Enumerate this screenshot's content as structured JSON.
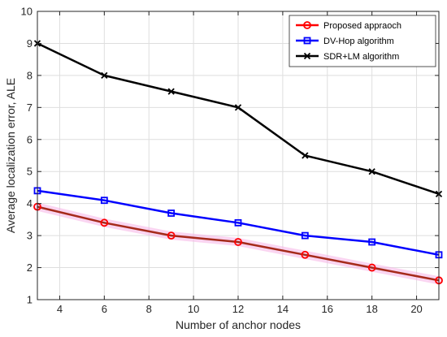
{
  "chart_data": {
    "type": "line",
    "title": "",
    "xlabel": "Number of anchor nodes",
    "ylabel": "Average localization error, ALE",
    "xlim": [
      3,
      21
    ],
    "ylim": [
      1,
      10
    ],
    "xticks": [
      4,
      6,
      8,
      10,
      12,
      14,
      16,
      18,
      20
    ],
    "yticks": [
      1,
      2,
      3,
      4,
      5,
      6,
      7,
      8,
      9,
      10
    ],
    "grid": true,
    "legend_position": "top-right",
    "x": [
      3,
      6,
      9,
      12,
      15,
      18,
      21
    ],
    "series": [
      {
        "name": "Proposed appraoch",
        "values": [
          3.9,
          3.4,
          3.0,
          2.8,
          2.4,
          2.0,
          1.6
        ],
        "color": "#ff0000",
        "marker": "circle"
      },
      {
        "name": "DV-Hop algorithm",
        "values": [
          4.4,
          4.1,
          3.7,
          3.4,
          3.0,
          2.8,
          2.4
        ],
        "color": "#0000ff",
        "marker": "square"
      },
      {
        "name": "SDR+LM algorithm",
        "values": [
          9.0,
          8.0,
          7.5,
          7.0,
          5.5,
          5.0,
          4.3
        ],
        "color": "#000000",
        "marker": "x"
      }
    ]
  }
}
